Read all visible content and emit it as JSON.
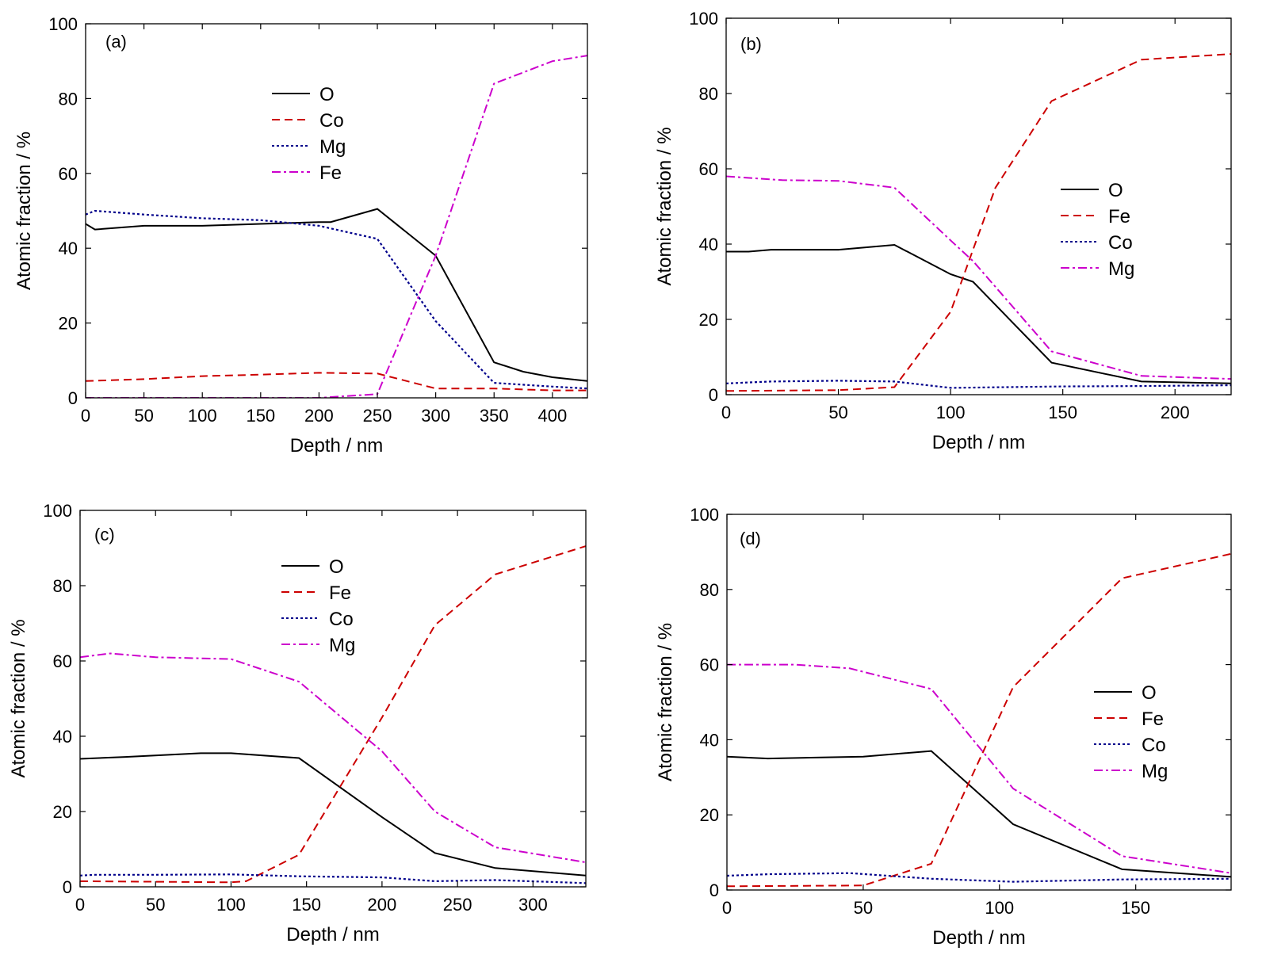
{
  "chart_data": [
    {
      "type": "line",
      "panel_label": "(a)",
      "xlabel": "Depth / nm",
      "ylabel": "Atomic fraction / %",
      "xlim": [
        0,
        430
      ],
      "ylim": [
        0,
        100
      ],
      "xticks": [
        0,
        50,
        100,
        150,
        200,
        250,
        300,
        350,
        400
      ],
      "yticks": [
        0,
        20,
        40,
        60,
        80,
        100
      ],
      "legend": "upper-middle",
      "series": [
        {
          "name": "O",
          "color": "#000000",
          "style": "solid",
          "x": [
            0,
            8,
            50,
            100,
            150,
            200,
            210,
            250,
            300,
            350,
            375,
            400,
            430
          ],
          "y": [
            46.5,
            45,
            46,
            46,
            46.5,
            47,
            47,
            50.5,
            38,
            9.5,
            7,
            5.5,
            4.5
          ]
        },
        {
          "name": "Co",
          "color": "#cc0000",
          "style": "dashed",
          "x": [
            0,
            50,
            100,
            150,
            200,
            250,
            300,
            350,
            400,
            430
          ],
          "y": [
            4.5,
            5,
            5.8,
            6.2,
            6.7,
            6.5,
            2.5,
            2.5,
            2,
            2
          ]
        },
        {
          "name": "Mg",
          "color": "#00008b",
          "style": "dotted",
          "x": [
            0,
            8,
            50,
            100,
            150,
            200,
            250,
            300,
            350,
            400,
            430
          ],
          "y": [
            49,
            50,
            49,
            48,
            47.5,
            46,
            42.5,
            20.5,
            4,
            3,
            2.5
          ]
        },
        {
          "name": "Fe",
          "color": "#cc00cc",
          "style": "dashdot",
          "x": [
            0,
            100,
            200,
            250,
            300,
            350,
            375,
            400,
            430
          ],
          "y": [
            0,
            0,
            0,
            1,
            38,
            84,
            87,
            90,
            91.5
          ]
        }
      ]
    },
    {
      "type": "line",
      "panel_label": "(b)",
      "xlabel": "Depth / nm",
      "ylabel": "Atomic fraction / %",
      "xlim": [
        0,
        225
      ],
      "ylim": [
        0,
        100
      ],
      "xticks": [
        0,
        50,
        100,
        150,
        200
      ],
      "yticks": [
        0,
        20,
        40,
        60,
        80,
        100
      ],
      "legend": "middle-right",
      "series": [
        {
          "name": "O",
          "color": "#000000",
          "style": "solid",
          "x": [
            0,
            10,
            20,
            50,
            75,
            100,
            110,
            145,
            185,
            225
          ],
          "y": [
            38,
            38,
            38.5,
            38.5,
            39.8,
            32,
            30,
            8.5,
            3.5,
            3
          ]
        },
        {
          "name": "Fe",
          "color": "#cc0000",
          "style": "dashed",
          "x": [
            0,
            50,
            75,
            100,
            120,
            145,
            185,
            225
          ],
          "y": [
            1,
            1.2,
            2,
            22,
            55,
            78,
            89,
            90.5
          ]
        },
        {
          "name": "Co",
          "color": "#00008b",
          "style": "dotted",
          "x": [
            0,
            20,
            50,
            75,
            100,
            150,
            185,
            225
          ],
          "y": [
            3,
            3.5,
            3.7,
            3.5,
            1.8,
            2.2,
            2.3,
            2.5
          ]
        },
        {
          "name": "Mg",
          "color": "#cc00cc",
          "style": "dashdot",
          "x": [
            0,
            25,
            50,
            75,
            100,
            110,
            145,
            185,
            225
          ],
          "y": [
            58,
            57,
            56.8,
            55,
            41,
            35.5,
            11.5,
            5,
            4.2
          ]
        }
      ]
    },
    {
      "type": "line",
      "panel_label": "(c)",
      "xlabel": "Depth / nm",
      "ylabel": "Atomic fraction / %",
      "xlim": [
        0,
        335
      ],
      "ylim": [
        0,
        100
      ],
      "xticks": [
        0,
        50,
        100,
        150,
        200,
        250,
        300
      ],
      "yticks": [
        0,
        20,
        40,
        60,
        80,
        100
      ],
      "legend": "upper-middle",
      "series": [
        {
          "name": "O",
          "color": "#000000",
          "style": "solid",
          "x": [
            0,
            30,
            80,
            100,
            145,
            200,
            235,
            275,
            335
          ],
          "y": [
            34,
            34.5,
            35.5,
            35.5,
            34.2,
            18.5,
            9,
            5,
            3
          ]
        },
        {
          "name": "Fe",
          "color": "#cc0000",
          "style": "dashed",
          "x": [
            0,
            100,
            110,
            145,
            200,
            235,
            275,
            335
          ],
          "y": [
            1.5,
            1.2,
            1.5,
            8.5,
            45,
            69.5,
            83,
            90.5
          ]
        },
        {
          "name": "Co",
          "color": "#00008b",
          "style": "dotted",
          "x": [
            0,
            10,
            50,
            100,
            145,
            200,
            235,
            275,
            335
          ],
          "y": [
            3,
            3.2,
            3.2,
            3.3,
            2.8,
            2.5,
            1.5,
            1.8,
            1
          ]
        },
        {
          "name": "Mg",
          "color": "#cc00cc",
          "style": "dashdot",
          "x": [
            0,
            20,
            50,
            100,
            145,
            200,
            235,
            275,
            335
          ],
          "y": [
            61,
            62,
            61,
            60.5,
            54.5,
            36,
            20,
            10.5,
            6.5
          ]
        }
      ]
    },
    {
      "type": "line",
      "panel_label": "(d)",
      "xlabel": "Depth / nm",
      "ylabel": "Atomic fraction / %",
      "xlim": [
        0,
        185
      ],
      "ylim": [
        0,
        100
      ],
      "xticks": [
        0,
        50,
        100,
        150
      ],
      "yticks": [
        0,
        20,
        40,
        60,
        80,
        100
      ],
      "legend": "middle-right",
      "series": [
        {
          "name": "O",
          "color": "#000000",
          "style": "solid",
          "x": [
            0,
            15,
            50,
            75,
            105,
            145,
            185
          ],
          "y": [
            35.5,
            35,
            35.5,
            37,
            17.5,
            5.5,
            3.5
          ]
        },
        {
          "name": "Fe",
          "color": "#cc0000",
          "style": "dashed",
          "x": [
            0,
            50,
            75,
            105,
            145,
            185
          ],
          "y": [
            1,
            1.2,
            7,
            54,
            83,
            89.5
          ]
        },
        {
          "name": "Co",
          "color": "#00008b",
          "style": "dotted",
          "x": [
            0,
            15,
            45,
            75,
            105,
            145,
            185
          ],
          "y": [
            3.8,
            4.2,
            4.5,
            3,
            2.2,
            2.8,
            3
          ]
        },
        {
          "name": "Mg",
          "color": "#cc00cc",
          "style": "dashdot",
          "x": [
            0,
            25,
            45,
            75,
            105,
            145,
            185
          ],
          "y": [
            60,
            60,
            59,
            53.5,
            27,
            9,
            4.5
          ]
        }
      ]
    }
  ]
}
